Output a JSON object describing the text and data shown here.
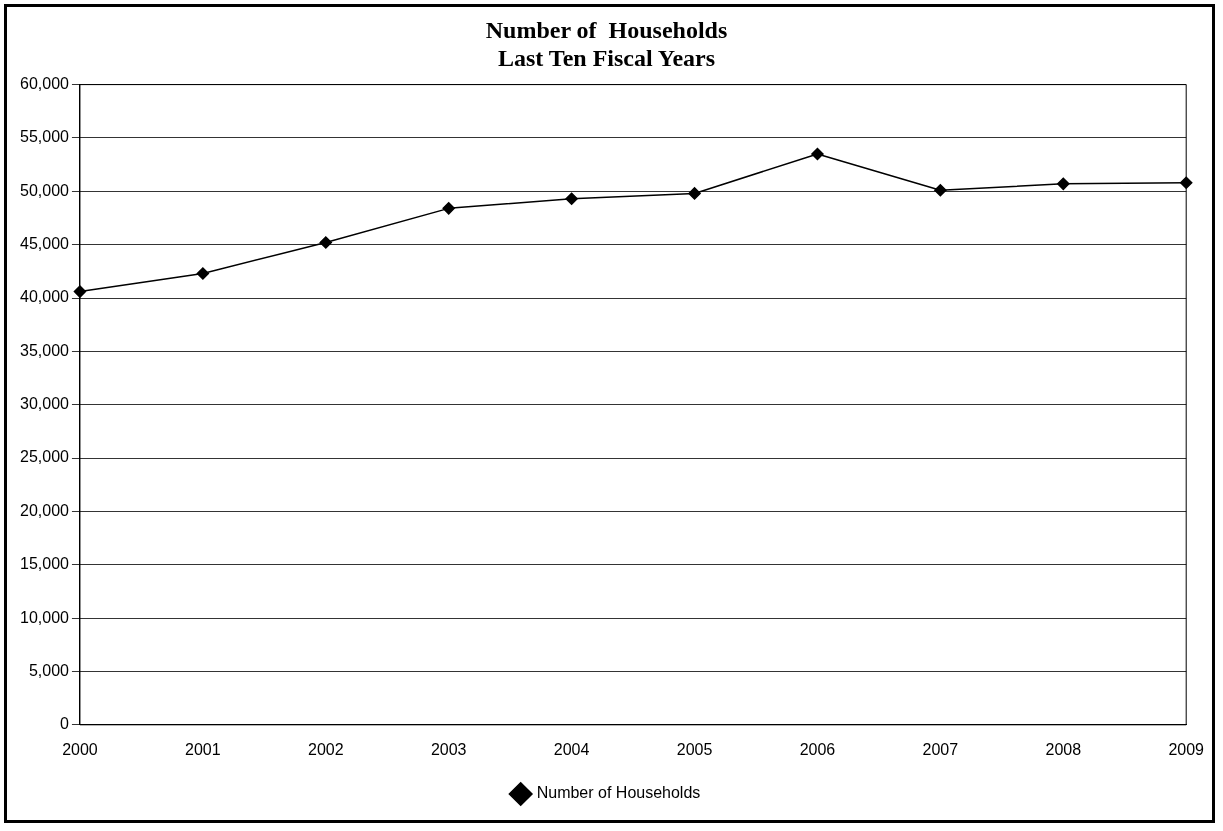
{
  "chart_data": {
    "type": "line",
    "title": "Number of  Households\nLast Ten Fiscal Years",
    "categories": [
      "2000",
      "2001",
      "2002",
      "2003",
      "2004",
      "2005",
      "2006",
      "2007",
      "2008",
      "2009"
    ],
    "series": [
      {
        "name": "Number of Households",
        "color": "#000000",
        "values": [
          40600,
          42300,
          45200,
          48400,
          49300,
          49800,
          53500,
          50100,
          50700,
          50800
        ]
      }
    ],
    "ylim": [
      0,
      60000
    ],
    "yticks": [
      {
        "value": 0,
        "label": "0"
      },
      {
        "value": 5000,
        "label": "5,000"
      },
      {
        "value": 10000,
        "label": "10,000"
      },
      {
        "value": 15000,
        "label": "15,000"
      },
      {
        "value": 20000,
        "label": "20,000"
      },
      {
        "value": 25000,
        "label": "25,000"
      },
      {
        "value": 30000,
        "label": "30,000"
      },
      {
        "value": 35000,
        "label": "35,000"
      },
      {
        "value": 40000,
        "label": "40,000"
      },
      {
        "value": 45000,
        "label": "45,000"
      },
      {
        "value": 50000,
        "label": "50,000"
      },
      {
        "value": 55000,
        "label": "55,000"
      },
      {
        "value": 60000,
        "label": "60,000"
      }
    ],
    "grid": "y",
    "legend": "bottom",
    "marker": "diamond",
    "line_style": "solid"
  }
}
